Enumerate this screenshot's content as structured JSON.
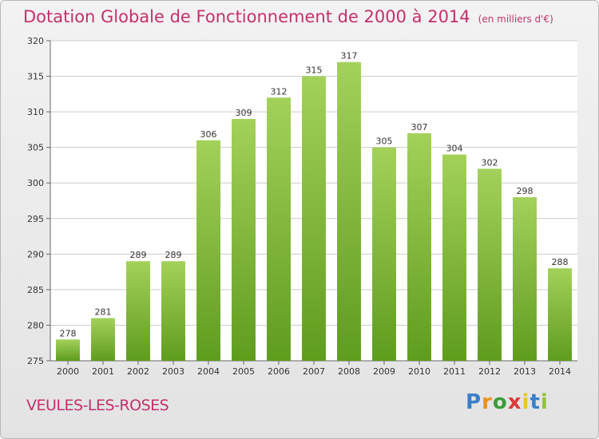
{
  "title": "Dotation Globale de Fonctionnement de 2000 à 2014",
  "subtitle": "(en milliers d'€)",
  "commune": "VEULES-LES-ROSES",
  "logo": {
    "letters": [
      "P",
      "r",
      "o",
      "x",
      "i",
      "t",
      "i"
    ],
    "colors": [
      "#3a7fc7",
      "#e8912a",
      "#3a9d3a",
      "#d93a3a",
      "#e8c42a",
      "#3a7fc7",
      "#8fc43a"
    ]
  },
  "colors": {
    "bar_light": "#a3d15a",
    "bar_dark": "#5f9c1e",
    "title": "#c4306d",
    "grid": "#cccccc"
  },
  "chart_data": {
    "type": "bar",
    "categories": [
      "2000",
      "2001",
      "2002",
      "2003",
      "2004",
      "2005",
      "2006",
      "2007",
      "2008",
      "2009",
      "2010",
      "2011",
      "2012",
      "2013",
      "2014"
    ],
    "values": [
      278,
      281,
      289,
      289,
      306,
      309,
      312,
      315,
      317,
      305,
      307,
      304,
      302,
      298,
      288
    ],
    "ylim": [
      275,
      320
    ],
    "yticks": [
      275,
      280,
      285,
      290,
      295,
      300,
      305,
      310,
      315,
      320
    ],
    "grid": true
  }
}
